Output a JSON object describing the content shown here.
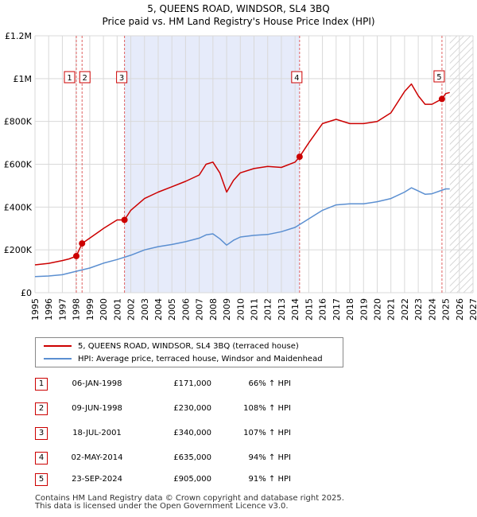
{
  "chart_data": {
    "type": "line",
    "title": "5, QUEENS ROAD, WINDSOR, SL4 3BQ",
    "subtitle": "Price paid vs. HM Land Registry's House Price Index (HPI)",
    "xlim": [
      1995,
      2027
    ],
    "ylim": [
      0,
      1200000
    ],
    "x_ticks": [
      "1995",
      "1996",
      "1997",
      "1998",
      "1999",
      "2000",
      "2001",
      "2002",
      "2003",
      "2004",
      "2005",
      "2006",
      "2007",
      "2008",
      "2009",
      "2010",
      "2011",
      "2012",
      "2013",
      "2014",
      "2015",
      "2016",
      "2017",
      "2018",
      "2019",
      "2020",
      "2021",
      "2022",
      "2023",
      "2024",
      "2025",
      "2026",
      "2027"
    ],
    "y_ticks": [
      {
        "value": 0,
        "label": "£0"
      },
      {
        "value": 200000,
        "label": "£200K"
      },
      {
        "value": 400000,
        "label": "£400K"
      },
      {
        "value": 600000,
        "label": "£600K"
      },
      {
        "value": 800000,
        "label": "£800K"
      },
      {
        "value": 1000000,
        "label": "£1M"
      },
      {
        "value": 1200000,
        "label": "£1.2M"
      }
    ],
    "shaded_region": [
      2001.54,
      2014.33
    ],
    "forecast_start": 2025.3,
    "colors": {
      "property": "#cc0000",
      "hpi": "#5b8fd1",
      "shade": "#e6ebfa",
      "marker": "#cc0000",
      "vline": "#e06060"
    },
    "series": [
      {
        "name": "5, QUEENS ROAD, WINDSOR, SL4 3BQ (terraced house)",
        "color": "#cc0000",
        "x": [
          1995.0,
          1996.0,
          1997.0,
          1997.5,
          1998.02,
          1998.44,
          1999.0,
          2000.0,
          2001.0,
          2001.54,
          2002.0,
          2003.0,
          2004.0,
          2005.0,
          2006.0,
          2007.0,
          2007.5,
          2008.0,
          2008.5,
          2009.0,
          2009.5,
          2010.0,
          2011.0,
          2012.0,
          2013.0,
          2014.0,
          2014.33,
          2015.0,
          2016.0,
          2017.0,
          2018.0,
          2019.0,
          2020.0,
          2021.0,
          2022.0,
          2022.5,
          2023.0,
          2023.5,
          2024.0,
          2024.73,
          2025.0,
          2025.3
        ],
        "values": [
          130000,
          137000,
          150000,
          158000,
          171000,
          230000,
          255000,
          300000,
          340000,
          340000,
          385000,
          440000,
          470000,
          495000,
          520000,
          550000,
          600000,
          610000,
          560000,
          470000,
          525000,
          560000,
          580000,
          590000,
          585000,
          610000,
          635000,
          700000,
          790000,
          810000,
          790000,
          790000,
          800000,
          840000,
          940000,
          975000,
          920000,
          880000,
          880000,
          905000,
          930000,
          935000
        ]
      },
      {
        "name": "HPI: Average price, terraced house, Windsor and Maidenhead",
        "color": "#5b8fd1",
        "x": [
          1995.0,
          1996.0,
          1997.0,
          1998.0,
          1999.0,
          2000.0,
          2001.0,
          2002.0,
          2003.0,
          2004.0,
          2005.0,
          2006.0,
          2007.0,
          2007.5,
          2008.0,
          2008.5,
          2009.0,
          2009.5,
          2010.0,
          2011.0,
          2012.0,
          2013.0,
          2014.0,
          2015.0,
          2016.0,
          2017.0,
          2018.0,
          2019.0,
          2020.0,
          2021.0,
          2022.0,
          2022.5,
          2023.0,
          2023.5,
          2024.0,
          2025.0,
          2025.3
        ],
        "values": [
          75000,
          78000,
          84000,
          100000,
          115000,
          138000,
          155000,
          175000,
          200000,
          215000,
          225000,
          238000,
          255000,
          270000,
          275000,
          252000,
          222000,
          245000,
          260000,
          268000,
          272000,
          285000,
          305000,
          345000,
          385000,
          410000,
          415000,
          415000,
          425000,
          440000,
          470000,
          490000,
          475000,
          460000,
          462000,
          485000,
          485000
        ]
      }
    ],
    "sales": [
      {
        "n": "1",
        "x": 1998.02,
        "value": 171000
      },
      {
        "n": "2",
        "x": 1998.44,
        "value": 230000
      },
      {
        "n": "3",
        "x": 2001.54,
        "value": 340000
      },
      {
        "n": "4",
        "x": 2014.33,
        "value": 635000
      },
      {
        "n": "5",
        "x": 2024.73,
        "value": 905000
      }
    ]
  },
  "legend": {
    "property_label": "5, QUEENS ROAD, WINDSOR, SL4 3BQ (terraced house)",
    "hpi_label": "HPI: Average price, terraced house, Windsor and Maidenhead"
  },
  "table": {
    "rows": [
      {
        "n": "1",
        "date": "06-JAN-1998",
        "price": "£171,000",
        "hpi": "66% ↑ HPI"
      },
      {
        "n": "2",
        "date": "09-JUN-1998",
        "price": "£230,000",
        "hpi": "108% ↑ HPI"
      },
      {
        "n": "3",
        "date": "18-JUL-2001",
        "price": "£340,000",
        "hpi": "107% ↑ HPI"
      },
      {
        "n": "4",
        "date": "02-MAY-2014",
        "price": "£635,000",
        "hpi": "94% ↑ HPI"
      },
      {
        "n": "5",
        "date": "23-SEP-2024",
        "price": "£905,000",
        "hpi": "91% ↑ HPI"
      }
    ]
  },
  "footer": {
    "line1": "Contains HM Land Registry data © Crown copyright and database right 2025.",
    "line2": "This data is licensed under the Open Government Licence v3.0."
  }
}
